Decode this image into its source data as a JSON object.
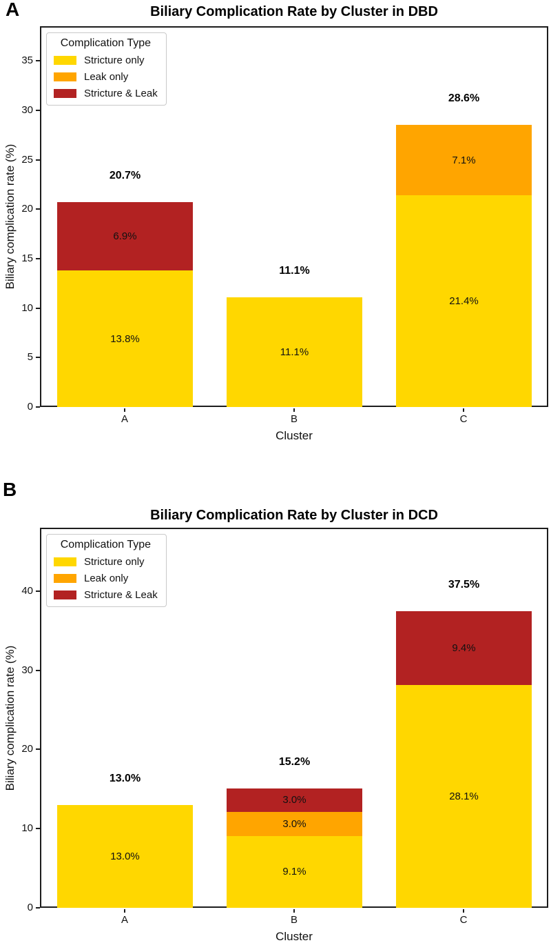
{
  "figure": {
    "background": "#ffffff",
    "panel_labels": [
      "A",
      "B"
    ]
  },
  "colors": {
    "stricture_only": "#FFD700",
    "leak_only": "#FFA500",
    "stricture_and_leak": "#B22222",
    "axis": "#1c1c1c",
    "text": "#111111"
  },
  "chart_data": [
    {
      "type": "bar",
      "stacked": true,
      "panel_label": "A",
      "title": "Biliary Complication Rate by Cluster in DBD",
      "xlabel": "Cluster",
      "ylabel": "Biliary complication rate (%)",
      "categories": [
        "A",
        "B",
        "C"
      ],
      "series": [
        {
          "name": "Stricture only",
          "color": "#FFD700",
          "values": [
            13.8,
            11.1,
            21.4
          ],
          "labels": [
            "13.8%",
            "11.1%",
            "21.4%"
          ]
        },
        {
          "name": "Leak only",
          "color": "#FFA500",
          "values": [
            0,
            0,
            7.1
          ],
          "labels": [
            "",
            "",
            "7.1%"
          ]
        },
        {
          "name": "Stricture & Leak",
          "color": "#B22222",
          "values": [
            6.9,
            0,
            0
          ],
          "labels": [
            "6.9%",
            "",
            ""
          ]
        }
      ],
      "totals": [
        "20.7%",
        "11.1%",
        "28.6%"
      ],
      "yticks": [
        0,
        5,
        10,
        15,
        20,
        25,
        30,
        35
      ],
      "ylim": [
        0,
        38.5
      ],
      "grid": false,
      "legend": {
        "title": "Complication Type",
        "position": "upper-left"
      }
    },
    {
      "type": "bar",
      "stacked": true,
      "panel_label": "B",
      "title": "Biliary Complication Rate by Cluster in DCD",
      "xlabel": "Cluster",
      "ylabel": "Biliary complication rate (%)",
      "categories": [
        "A",
        "B",
        "C"
      ],
      "series": [
        {
          "name": "Stricture only",
          "color": "#FFD700",
          "values": [
            13.0,
            9.1,
            28.1
          ],
          "labels": [
            "13.0%",
            "9.1%",
            "28.1%"
          ]
        },
        {
          "name": "Leak only",
          "color": "#FFA500",
          "values": [
            0,
            3.0,
            0
          ],
          "labels": [
            "",
            "3.0%",
            ""
          ]
        },
        {
          "name": "Stricture & Leak",
          "color": "#B22222",
          "values": [
            0,
            3.0,
            9.4
          ],
          "labels": [
            "",
            "3.0%",
            "9.4%"
          ]
        }
      ],
      "totals": [
        "13.0%",
        "15.2%",
        "37.5%"
      ],
      "yticks": [
        0,
        10,
        20,
        30,
        40
      ],
      "ylim": [
        0,
        48
      ],
      "grid": false,
      "legend": {
        "title": "Complication Type",
        "position": "upper-left"
      }
    }
  ]
}
